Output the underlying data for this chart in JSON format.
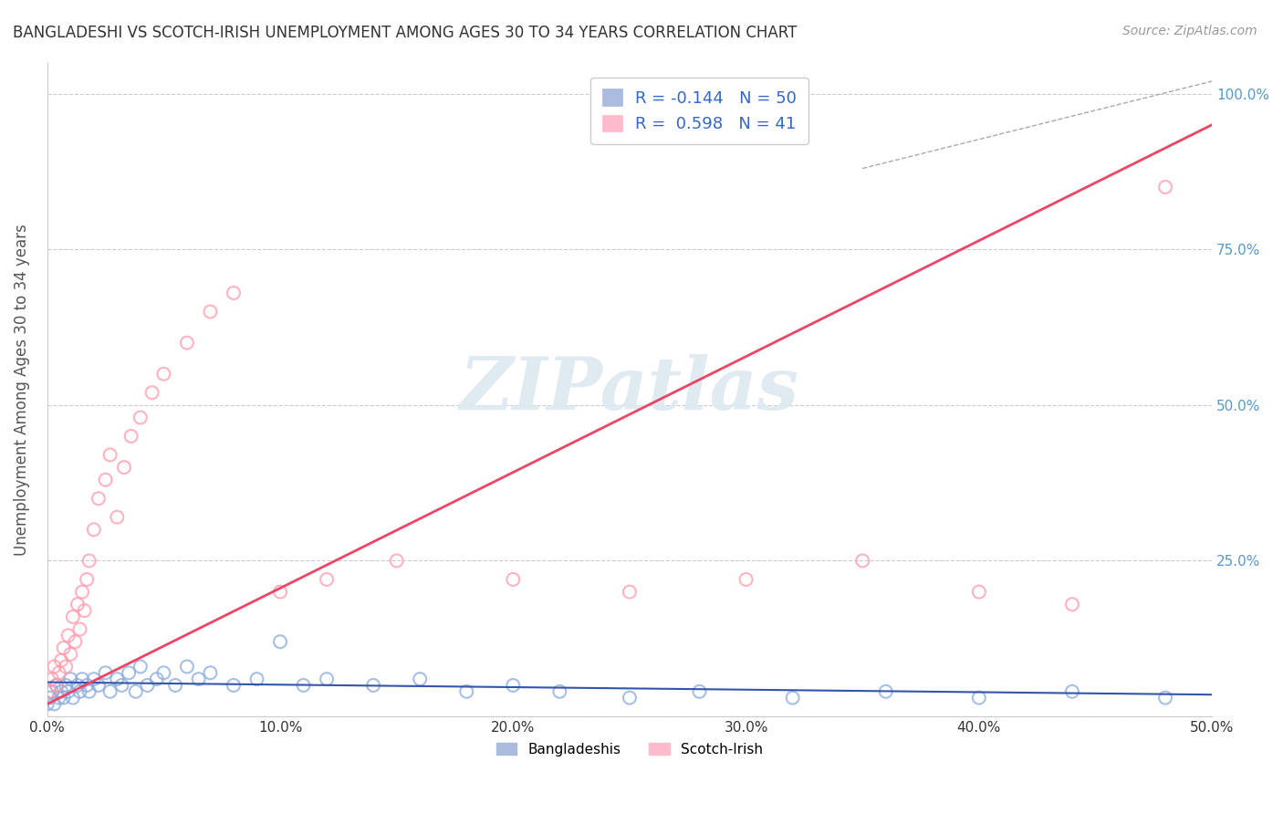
{
  "title": "BANGLADESHI VS SCOTCH-IRISH UNEMPLOYMENT AMONG AGES 30 TO 34 YEARS CORRELATION CHART",
  "source": "Source: ZipAtlas.com",
  "ylabel": "Unemployment Among Ages 30 to 34 years",
  "xlim": [
    0.0,
    0.5
  ],
  "ylim": [
    0.0,
    1.05
  ],
  "xticks": [
    0.0,
    0.1,
    0.2,
    0.3,
    0.4,
    0.5
  ],
  "xticklabels": [
    "0.0%",
    "10.0%",
    "20.0%",
    "30.0%",
    "40.0%",
    "50.0%"
  ],
  "yticks": [
    0.0,
    0.25,
    0.5,
    0.75,
    1.0
  ],
  "yticklabels": [
    "",
    "25.0%",
    "50.0%",
    "75.0%",
    "100.0%"
  ],
  "grid_color": "#cccccc",
  "background_color": "#ffffff",
  "bangladeshi_color": "#88aadd",
  "scotch_irish_color": "#ff99aa",
  "bangladeshi_line_color": "#3355aa",
  "scotch_irish_line_color": "#ee4466",
  "legend_r_bangladeshi": "-0.144",
  "legend_n_bangladeshi": "50",
  "legend_r_scotch_irish": "0.598",
  "legend_n_scotch_irish": "41",
  "watermark": "ZIPatlas",
  "bangladeshi_x": [
    0.0,
    0.001,
    0.002,
    0.003,
    0.004,
    0.005,
    0.006,
    0.007,
    0.008,
    0.009,
    0.01,
    0.011,
    0.013,
    0.014,
    0.015,
    0.017,
    0.018,
    0.02,
    0.022,
    0.025,
    0.027,
    0.03,
    0.032,
    0.035,
    0.038,
    0.04,
    0.043,
    0.047,
    0.05,
    0.055,
    0.06,
    0.065,
    0.07,
    0.08,
    0.09,
    0.1,
    0.11,
    0.12,
    0.14,
    0.16,
    0.18,
    0.2,
    0.22,
    0.25,
    0.28,
    0.32,
    0.36,
    0.4,
    0.44,
    0.48
  ],
  "bangladeshi_y": [
    0.02,
    0.03,
    0.04,
    0.02,
    0.05,
    0.03,
    0.04,
    0.03,
    0.05,
    0.04,
    0.06,
    0.03,
    0.05,
    0.04,
    0.06,
    0.05,
    0.04,
    0.06,
    0.05,
    0.07,
    0.04,
    0.06,
    0.05,
    0.07,
    0.04,
    0.08,
    0.05,
    0.06,
    0.07,
    0.05,
    0.08,
    0.06,
    0.07,
    0.05,
    0.06,
    0.12,
    0.05,
    0.06,
    0.05,
    0.06,
    0.04,
    0.05,
    0.04,
    0.03,
    0.04,
    0.03,
    0.04,
    0.03,
    0.04,
    0.03
  ],
  "scotch_irish_x": [
    0.001,
    0.002,
    0.003,
    0.004,
    0.005,
    0.006,
    0.007,
    0.008,
    0.009,
    0.01,
    0.011,
    0.012,
    0.013,
    0.014,
    0.015,
    0.016,
    0.017,
    0.018,
    0.02,
    0.022,
    0.025,
    0.027,
    0.03,
    0.033,
    0.036,
    0.04,
    0.045,
    0.05,
    0.06,
    0.07,
    0.08,
    0.1,
    0.12,
    0.15,
    0.2,
    0.25,
    0.3,
    0.35,
    0.4,
    0.44,
    0.48
  ],
  "scotch_irish_y": [
    0.04,
    0.06,
    0.08,
    0.05,
    0.07,
    0.09,
    0.11,
    0.08,
    0.13,
    0.1,
    0.16,
    0.12,
    0.18,
    0.14,
    0.2,
    0.17,
    0.22,
    0.25,
    0.3,
    0.35,
    0.38,
    0.42,
    0.32,
    0.4,
    0.45,
    0.48,
    0.52,
    0.55,
    0.6,
    0.65,
    0.68,
    0.2,
    0.22,
    0.25,
    0.22,
    0.2,
    0.22,
    0.25,
    0.2,
    0.18,
    0.85
  ],
  "bang_line_x0": 0.0,
  "bang_line_x1": 0.5,
  "bang_line_y0": 0.055,
  "bang_line_y1": 0.035,
  "si_line_x0": 0.0,
  "si_line_x1": 0.5,
  "si_line_y0": 0.02,
  "si_line_y1": 0.95
}
